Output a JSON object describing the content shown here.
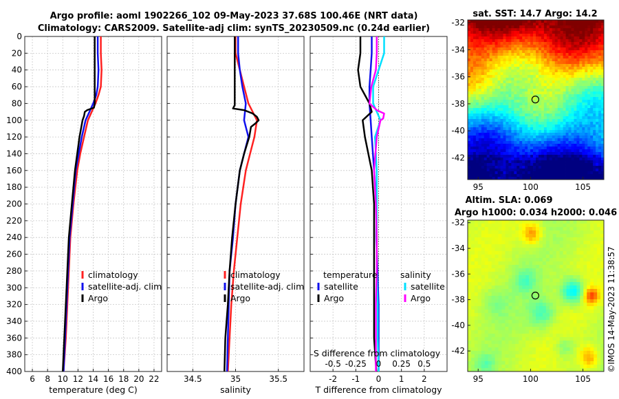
{
  "title": {
    "line1": "Argo profile: aoml 1902266_102 09-May-2023 37.68S 100.46E (NRT data)",
    "line2": "Climatology: CARS2009. Satellite-adj clim: synTS_20230509.nc (0.24d earlier)"
  },
  "depth_ticks": [
    0,
    20,
    40,
    60,
    80,
    100,
    120,
    140,
    160,
    180,
    200,
    220,
    240,
    260,
    280,
    300,
    320,
    340,
    360,
    380,
    400
  ],
  "colors": {
    "clim": "#ff2020",
    "sat": "#1010ee",
    "argo": "#000000",
    "sal_sat": "#00e0ff",
    "sal_argo": "#ff00ff",
    "dotted": "#444444"
  },
  "chart_data": [
    {
      "type": "line",
      "name": "temperature",
      "xlabel": "temperature (deg C)",
      "ylabel": "",
      "xlim": [
        5,
        23
      ],
      "ylim": [
        400,
        0
      ],
      "xticks": [
        6,
        8,
        10,
        12,
        14,
        16,
        18,
        20,
        22
      ],
      "legend": [
        "climatology",
        "satellite-adj. clim",
        "Argo"
      ],
      "series": [
        {
          "name": "climatology",
          "color": "clim",
          "depth": [
            0,
            20,
            40,
            60,
            70,
            80,
            90,
            100,
            120,
            140,
            160,
            200,
            240,
            280,
            320,
            360,
            400
          ],
          "values": [
            15.0,
            15.0,
            15.1,
            15.0,
            14.7,
            14.3,
            13.8,
            13.3,
            12.8,
            12.3,
            11.9,
            11.4,
            11.0,
            10.8,
            10.6,
            10.4,
            10.1
          ]
        },
        {
          "name": "satellite-adj. clim",
          "color": "sat",
          "depth": [
            0,
            20,
            40,
            60,
            70,
            80,
            90,
            100,
            120,
            140,
            160,
            200,
            240,
            280,
            320,
            360,
            400
          ],
          "values": [
            14.6,
            14.6,
            14.7,
            14.6,
            14.4,
            14.0,
            13.5,
            13.0,
            12.5,
            12.1,
            11.7,
            11.3,
            10.9,
            10.7,
            10.5,
            10.3,
            10.1
          ]
        },
        {
          "name": "Argo",
          "color": "argo",
          "depth": [
            0,
            20,
            40,
            60,
            80,
            85,
            88,
            90,
            95,
            100,
            120,
            140,
            160,
            200,
            240,
            280,
            320,
            360,
            380,
            400
          ],
          "values": [
            14.2,
            14.2,
            14.2,
            14.2,
            14.2,
            14.1,
            13.2,
            12.9,
            12.8,
            12.6,
            12.2,
            11.9,
            11.6,
            11.2,
            10.8,
            10.6,
            10.4,
            10.2,
            10.1,
            10.0
          ]
        }
      ]
    },
    {
      "type": "line",
      "name": "salinity",
      "xlabel": "salinity",
      "ylabel": "",
      "xlim": [
        34.2,
        35.8
      ],
      "ylim": [
        400,
        0
      ],
      "xticks": [
        34.5,
        35,
        35.5
      ],
      "xtick_labels": [
        "34.5",
        "35",
        "35.5"
      ],
      "legend": [
        "climatology",
        "satellite-adj. clim",
        "Argo"
      ],
      "series": [
        {
          "name": "climatology",
          "color": "clim",
          "depth": [
            0,
            20,
            40,
            60,
            80,
            100,
            120,
            140,
            160,
            200,
            240,
            280,
            320,
            360,
            400
          ],
          "values": [
            35.0,
            35.0,
            35.05,
            35.1,
            35.15,
            35.25,
            35.22,
            35.17,
            35.12,
            35.06,
            35.02,
            34.98,
            34.95,
            34.93,
            34.91
          ]
        },
        {
          "name": "satellite-adj. clim",
          "color": "sat",
          "depth": [
            0,
            20,
            40,
            60,
            80,
            100,
            120,
            140,
            160,
            200,
            240,
            280,
            320,
            360,
            400
          ],
          "values": [
            35.03,
            35.03,
            35.05,
            35.08,
            35.12,
            35.1,
            35.15,
            35.1,
            35.05,
            35.0,
            34.97,
            34.93,
            34.92,
            34.91,
            34.9
          ]
        },
        {
          "name": "Argo",
          "color": "argo",
          "depth": [
            0,
            20,
            40,
            60,
            70,
            78,
            82,
            86,
            88,
            92,
            96,
            100,
            104,
            108,
            120,
            140,
            160,
            200,
            240,
            280,
            320,
            360,
            400
          ],
          "values": [
            34.99,
            34.99,
            34.99,
            34.99,
            34.99,
            34.99,
            34.99,
            34.97,
            35.1,
            35.2,
            35.25,
            35.27,
            35.23,
            35.18,
            35.16,
            35.1,
            35.05,
            35.0,
            34.96,
            34.93,
            34.91,
            34.88,
            34.87
          ]
        }
      ]
    },
    {
      "type": "line",
      "name": "difference",
      "xlabel": "T difference from climatology",
      "xlabel_top": "S difference from climatology",
      "xlim": [
        -3,
        3
      ],
      "ylim": [
        400,
        0
      ],
      "xticks": [
        -2,
        -1,
        0,
        1,
        2
      ],
      "top_ticks": [
        -0.5,
        -0.25,
        0,
        0.25,
        0.5
      ],
      "top_tick_labels": [
        "-0.5",
        "-0.25",
        "0",
        "0.25",
        "0.5"
      ],
      "legend_temperature_title": "temperature",
      "legend_salinity_title": "salinity",
      "legend_temperature": [
        "satellite",
        "Argo"
      ],
      "legend_salinity": [
        "satellite",
        "Argo"
      ],
      "series": [
        {
          "name": "temperature satellite",
          "color": "sat",
          "depth": [
            0,
            20,
            40,
            60,
            80,
            100,
            120,
            160,
            200,
            240,
            280,
            320,
            360,
            400
          ],
          "values": [
            -0.3,
            -0.3,
            -0.35,
            -0.4,
            -0.4,
            -0.35,
            -0.3,
            -0.2,
            -0.1,
            -0.1,
            -0.05,
            0.0,
            0.0,
            0.0
          ]
        },
        {
          "name": "temperature Argo",
          "color": "argo",
          "depth": [
            0,
            20,
            40,
            60,
            80,
            90,
            95,
            100,
            120,
            160,
            200,
            240,
            280,
            320,
            360,
            400
          ],
          "values": [
            -0.8,
            -0.8,
            -0.9,
            -0.8,
            -0.4,
            -0.3,
            -0.5,
            -0.7,
            -0.6,
            -0.3,
            -0.2,
            -0.2,
            -0.2,
            -0.2,
            -0.2,
            -0.1
          ]
        },
        {
          "name": "salinity satellite",
          "color": "sal_sat",
          "depth": [
            0,
            20,
            40,
            60,
            80,
            100,
            120,
            160,
            200,
            240,
            280,
            320,
            360,
            400
          ],
          "values": [
            0.06,
            0.06,
            0.0,
            -0.06,
            -0.06,
            0.02,
            -0.04,
            -0.02,
            -0.02,
            -0.02,
            -0.02,
            -0.01,
            -0.01,
            0.0
          ]
        },
        {
          "name": "salinity Argo",
          "color": "sal_argo",
          "depth": [
            0,
            20,
            40,
            60,
            80,
            88,
            92,
            98,
            100,
            120,
            160,
            200,
            240,
            280,
            320,
            360,
            400
          ],
          "values": [
            -0.02,
            -0.02,
            -0.03,
            -0.08,
            -0.1,
            -0.02,
            0.06,
            0.05,
            0.02,
            -0.02,
            -0.05,
            -0.03,
            -0.02,
            -0.02,
            -0.03,
            -0.03,
            -0.03
          ]
        }
      ]
    },
    {
      "type": "heatmap",
      "name": "sst_map",
      "title": "sat. SST: 14.7 Argo: 14.2",
      "xlim": [
        94,
        107
      ],
      "ylim": [
        -43.6,
        -31.8
      ],
      "xticks": [
        95,
        100,
        105
      ],
      "yticks": [
        -32,
        -34,
        -36,
        -38,
        -40,
        -42
      ],
      "marker": {
        "lon": 100.46,
        "lat": -37.68
      }
    },
    {
      "type": "heatmap",
      "name": "sla_map",
      "title_line1": "Altim. SLA: 0.069",
      "title_line2": "Argo h1000: 0.034 h2000: 0.046",
      "xlim": [
        94,
        107
      ],
      "ylim": [
        -43.6,
        -31.8
      ],
      "xticks": [
        95,
        100,
        105
      ],
      "yticks": [
        -32,
        -34,
        -36,
        -38,
        -40,
        -42
      ],
      "marker": {
        "lon": 100.46,
        "lat": -37.68
      }
    }
  ],
  "watermark": "©IMOS 14-May-2023 11:38:57"
}
